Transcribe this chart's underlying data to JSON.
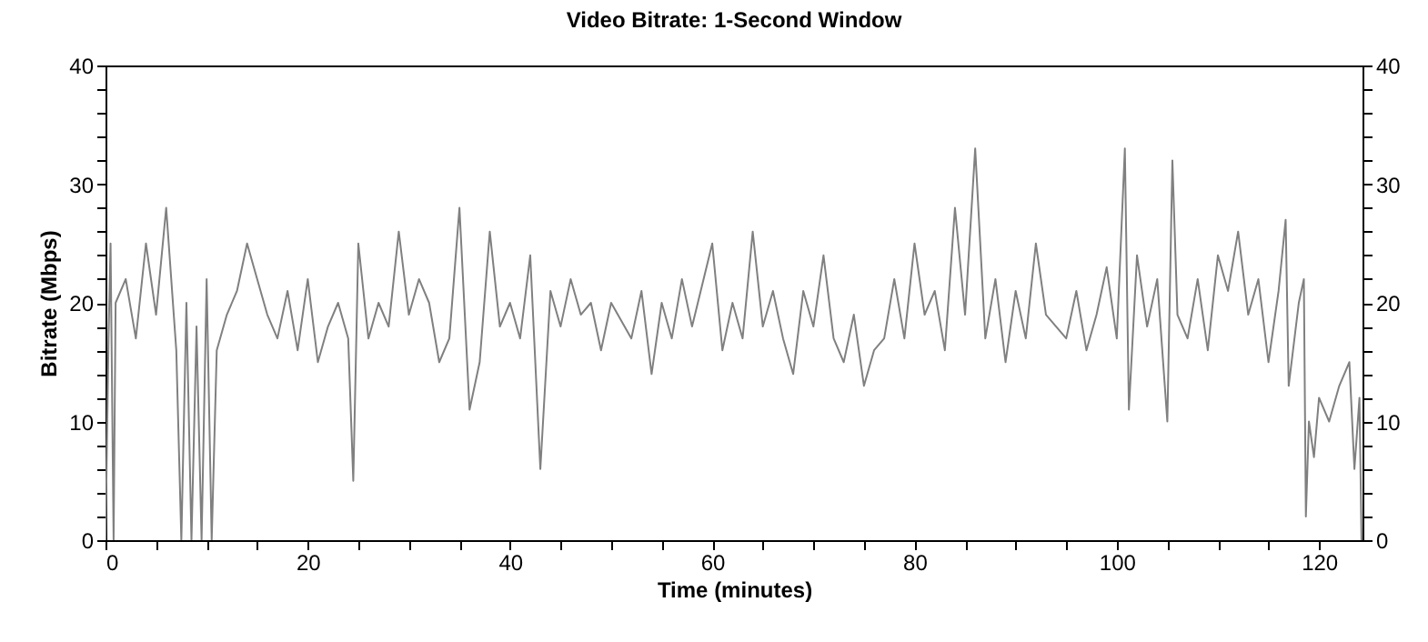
{
  "chart_data": {
    "type": "line",
    "title": "Video Bitrate: 1-Second Window",
    "xlabel": "Time (minutes)",
    "ylabel": "Bitrate (Mbps)",
    "xlim": [
      0,
      124.3
    ],
    "ylim": [
      0,
      40
    ],
    "y2lim": [
      0,
      40
    ],
    "xticks": [
      0,
      {
        "value": 5,
        "label": null
      },
      {
        "value": 10,
        "label": null
      },
      {
        "value": 15,
        "label": null
      },
      20,
      {
        "value": 25,
        "label": null
      },
      {
        "value": 30,
        "label": null
      },
      {
        "value": 35,
        "label": null
      },
      40,
      {
        "value": 45,
        "label": null
      },
      {
        "value": 50,
        "label": null
      },
      {
        "value": 55,
        "label": null
      },
      60,
      {
        "value": 65,
        "label": null
      },
      {
        "value": 70,
        "label": null
      },
      {
        "value": 75,
        "label": null
      },
      80,
      {
        "value": 85,
        "label": null
      },
      {
        "value": 90,
        "label": null
      },
      {
        "value": 95,
        "label": null
      },
      100,
      {
        "value": 105,
        "label": null
      },
      {
        "value": 110,
        "label": null
      },
      {
        "value": 115,
        "label": null
      },
      120
    ],
    "yticks": [
      0,
      {
        "value": 2,
        "label": null
      },
      {
        "value": 4,
        "label": null
      },
      {
        "value": 6,
        "label": null
      },
      {
        "value": 8,
        "label": null
      },
      10,
      {
        "value": 12,
        "label": null
      },
      {
        "value": 14,
        "label": null
      },
      {
        "value": 16,
        "label": null
      },
      {
        "value": 18,
        "label": null
      },
      20,
      {
        "value": 22,
        "label": null
      },
      {
        "value": 24,
        "label": null
      },
      {
        "value": 26,
        "label": null
      },
      {
        "value": 28,
        "label": null
      },
      30,
      {
        "value": 32,
        "label": null
      },
      {
        "value": 34,
        "label": null
      },
      {
        "value": 36,
        "label": null
      },
      {
        "value": 38,
        "label": null
      },
      40
    ],
    "y2ticks": [
      0,
      {
        "value": 2,
        "label": null
      },
      {
        "value": 4,
        "label": null
      },
      {
        "value": 6,
        "label": null
      },
      {
        "value": 8,
        "label": null
      },
      10,
      {
        "value": 12,
        "label": null
      },
      {
        "value": 14,
        "label": null
      },
      {
        "value": 16,
        "label": null
      },
      {
        "value": 18,
        "label": null
      },
      20,
      {
        "value": 22,
        "label": null
      },
      {
        "value": 24,
        "label": null
      },
      {
        "value": 26,
        "label": null
      },
      {
        "value": 28,
        "label": null
      },
      30,
      {
        "value": 32,
        "label": null
      },
      {
        "value": 34,
        "label": null
      },
      {
        "value": 36,
        "label": null
      },
      {
        "value": 38,
        "label": null
      },
      40
    ],
    "grid": false,
    "marker": "none",
    "line_style": "solid",
    "series": [
      {
        "color": "#808080",
        "x": [
          0,
          0.3,
          0.5,
          0.8,
          1,
          2,
          3,
          4,
          5,
          6,
          7,
          7.5,
          8,
          8.5,
          9,
          9.5,
          10,
          10.5,
          11,
          12,
          13,
          14,
          15,
          16,
          17,
          18,
          19,
          20,
          21,
          22,
          23,
          24,
          24.5,
          25,
          26,
          27,
          28,
          29,
          30,
          31,
          32,
          33,
          34,
          35,
          36,
          37,
          38,
          39,
          40,
          41,
          42,
          43,
          44,
          45,
          46,
          47,
          48,
          49,
          50,
          52,
          53,
          54,
          55,
          56,
          57,
          58,
          60,
          61,
          62,
          63,
          64,
          65,
          66,
          67,
          68,
          69,
          70,
          71,
          72,
          73,
          74,
          75,
          76,
          77,
          78,
          79,
          80,
          81,
          82,
          83,
          84,
          85,
          86,
          87,
          88,
          89,
          90,
          91,
          92,
          93,
          94,
          95,
          96,
          97,
          98,
          99,
          100,
          100.8,
          101.2,
          102,
          103,
          104,
          105,
          105.5,
          106,
          107,
          108,
          109,
          110,
          111,
          112,
          113,
          114,
          115,
          116,
          116.7,
          117,
          118,
          118.5,
          118.7,
          119,
          119.5,
          120,
          121,
          122,
          123,
          123.5,
          124,
          124.2
        ],
        "values": [
          0,
          17,
          25,
          0,
          20,
          22,
          17,
          25,
          19,
          28,
          16,
          0,
          20,
          0,
          18,
          0,
          22,
          0,
          16,
          19,
          21,
          25,
          22,
          19,
          17,
          21,
          16,
          22,
          15,
          18,
          20,
          17,
          5,
          25,
          17,
          20,
          18,
          26,
          19,
          22,
          20,
          15,
          17,
          28,
          11,
          15,
          26,
          18,
          20,
          17,
          24,
          6,
          21,
          18,
          22,
          19,
          20,
          16,
          20,
          17,
          21,
          14,
          20,
          17,
          22,
          18,
          25,
          16,
          20,
          17,
          26,
          18,
          21,
          17,
          14,
          21,
          18,
          24,
          17,
          15,
          19,
          13,
          16,
          17,
          22,
          17,
          25,
          19,
          21,
          16,
          28,
          19,
          33,
          17,
          22,
          15,
          21,
          17,
          25,
          19,
          18,
          17,
          21,
          16,
          19,
          23,
          17,
          33,
          11,
          24,
          18,
          22,
          10,
          32,
          19,
          17,
          22,
          16,
          24,
          21,
          26,
          19,
          22,
          15,
          21,
          27,
          13,
          20,
          22,
          2,
          10,
          7,
          12,
          10,
          13,
          15,
          6,
          12,
          0
        ]
      }
    ]
  }
}
